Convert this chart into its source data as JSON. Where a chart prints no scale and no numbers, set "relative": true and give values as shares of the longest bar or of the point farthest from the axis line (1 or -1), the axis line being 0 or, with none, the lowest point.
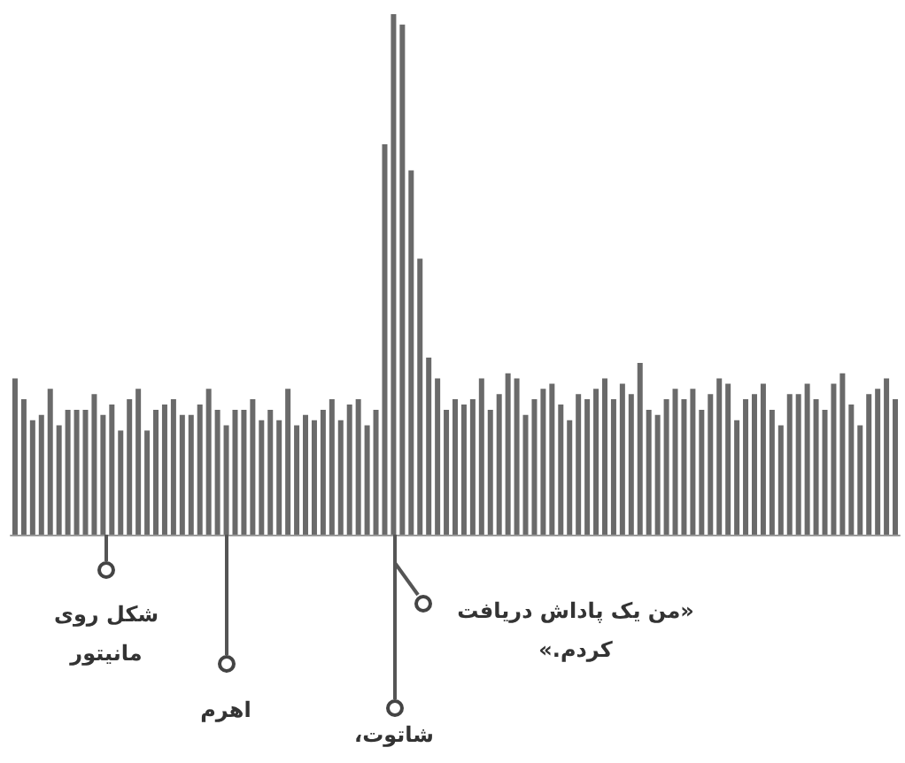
{
  "chart_data": {
    "type": "bar",
    "relative": true,
    "color": "#6a6a6a",
    "categories": [
      null,
      null,
      null,
      null,
      null,
      null,
      null,
      null,
      null,
      null,
      null,
      null,
      null,
      null,
      null,
      null,
      null,
      null,
      null,
      null,
      null,
      null,
      null,
      null,
      null,
      null,
      null,
      null,
      null,
      null,
      null,
      null,
      null,
      null,
      null,
      null,
      null,
      null,
      null,
      null,
      null,
      null,
      null,
      null,
      null,
      null,
      null,
      null,
      null,
      null,
      null,
      null,
      null,
      null,
      null,
      null,
      null,
      null,
      null,
      null,
      null,
      null,
      null,
      null,
      null,
      null,
      null,
      null,
      null,
      null,
      null,
      null,
      null,
      null,
      null,
      null,
      null,
      null,
      null,
      null,
      null,
      null,
      null,
      null,
      null,
      null,
      null,
      null,
      null,
      null,
      null,
      null,
      null,
      null,
      null,
      null,
      null,
      null,
      null,
      null,
      null
    ],
    "values": [
      0.3,
      0.26,
      0.22,
      0.23,
      0.28,
      0.21,
      0.24,
      0.24,
      0.24,
      0.27,
      0.23,
      0.25,
      0.2,
      0.26,
      0.28,
      0.2,
      0.24,
      0.25,
      0.26,
      0.23,
      0.23,
      0.25,
      0.28,
      0.24,
      0.21,
      0.24,
      0.24,
      0.26,
      0.22,
      0.24,
      0.22,
      0.28,
      0.21,
      0.23,
      0.22,
      0.24,
      0.26,
      0.22,
      0.25,
      0.26,
      0.21,
      0.24,
      0.75,
      1.0,
      0.98,
      0.7,
      0.53,
      0.34,
      0.3,
      0.24,
      0.26,
      0.25,
      0.26,
      0.3,
      0.24,
      0.27,
      0.31,
      0.3,
      0.23,
      0.26,
      0.28,
      0.29,
      0.25,
      0.22,
      0.27,
      0.26,
      0.28,
      0.3,
      0.26,
      0.29,
      0.27,
      0.33,
      0.24,
      0.23,
      0.26,
      0.28,
      0.26,
      0.28,
      0.24,
      0.27,
      0.3,
      0.29,
      0.22,
      0.26,
      0.27,
      0.29,
      0.24,
      0.21,
      0.27,
      0.27,
      0.29,
      0.26,
      0.24,
      0.29,
      0.31,
      0.25,
      0.21,
      0.27,
      0.28,
      0.3,
      0.26
    ],
    "annotations": [
      "شکل روی مانیتور",
      "اهرم",
      "شاتوت،",
      "«من یک پاداش دریافت کردم.»"
    ]
  }
}
